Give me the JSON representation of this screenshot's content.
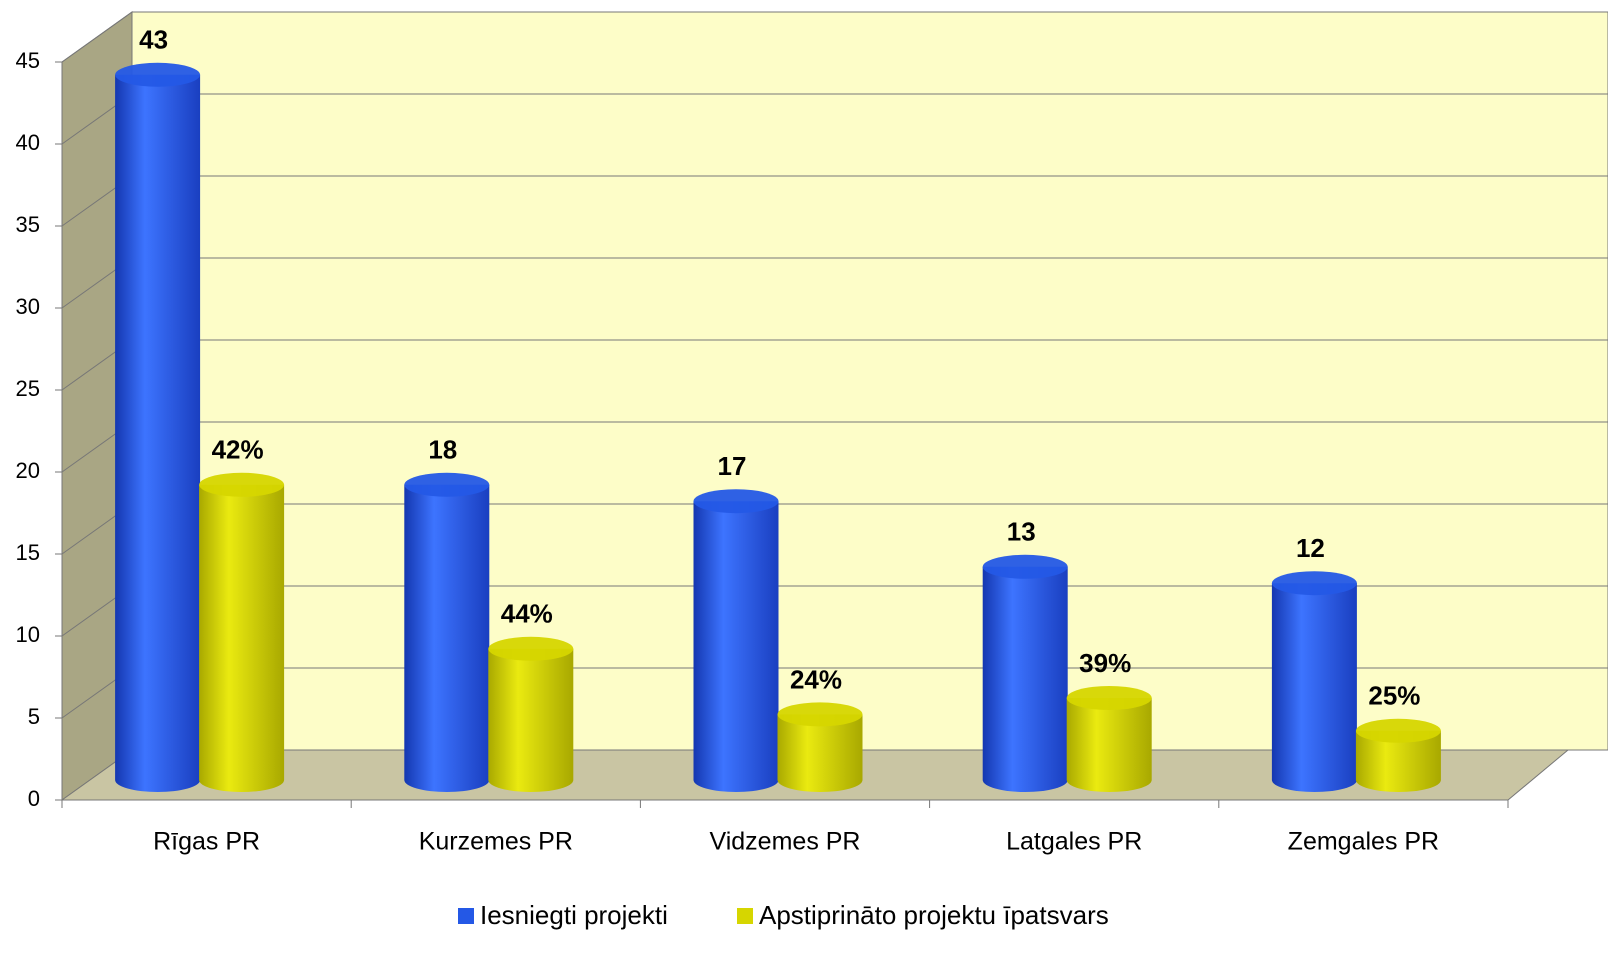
{
  "chart_data": {
    "type": "bar3d",
    "categories": [
      "Rīgas PR",
      "Kurzemes PR",
      "Vidzemes PR",
      "Latgales PR",
      "Zemgales PR"
    ],
    "series": [
      {
        "name": "Iesniegti projekti",
        "color": "#2458e6",
        "values": [
          43,
          18,
          17,
          13,
          12
        ]
      },
      {
        "name": "Apstiprināto projektu īpatsvars",
        "color": "#d6d600",
        "values": [
          18,
          8,
          4,
          5,
          3
        ],
        "value_labels": [
          "42%",
          "44%",
          "24%",
          "39%",
          "25%"
        ]
      }
    ],
    "ylim": [
      0,
      45
    ],
    "yticks": [
      0,
      5,
      10,
      15,
      20,
      25,
      30,
      35,
      40,
      45
    ],
    "grid": true,
    "legend": "bottom"
  }
}
